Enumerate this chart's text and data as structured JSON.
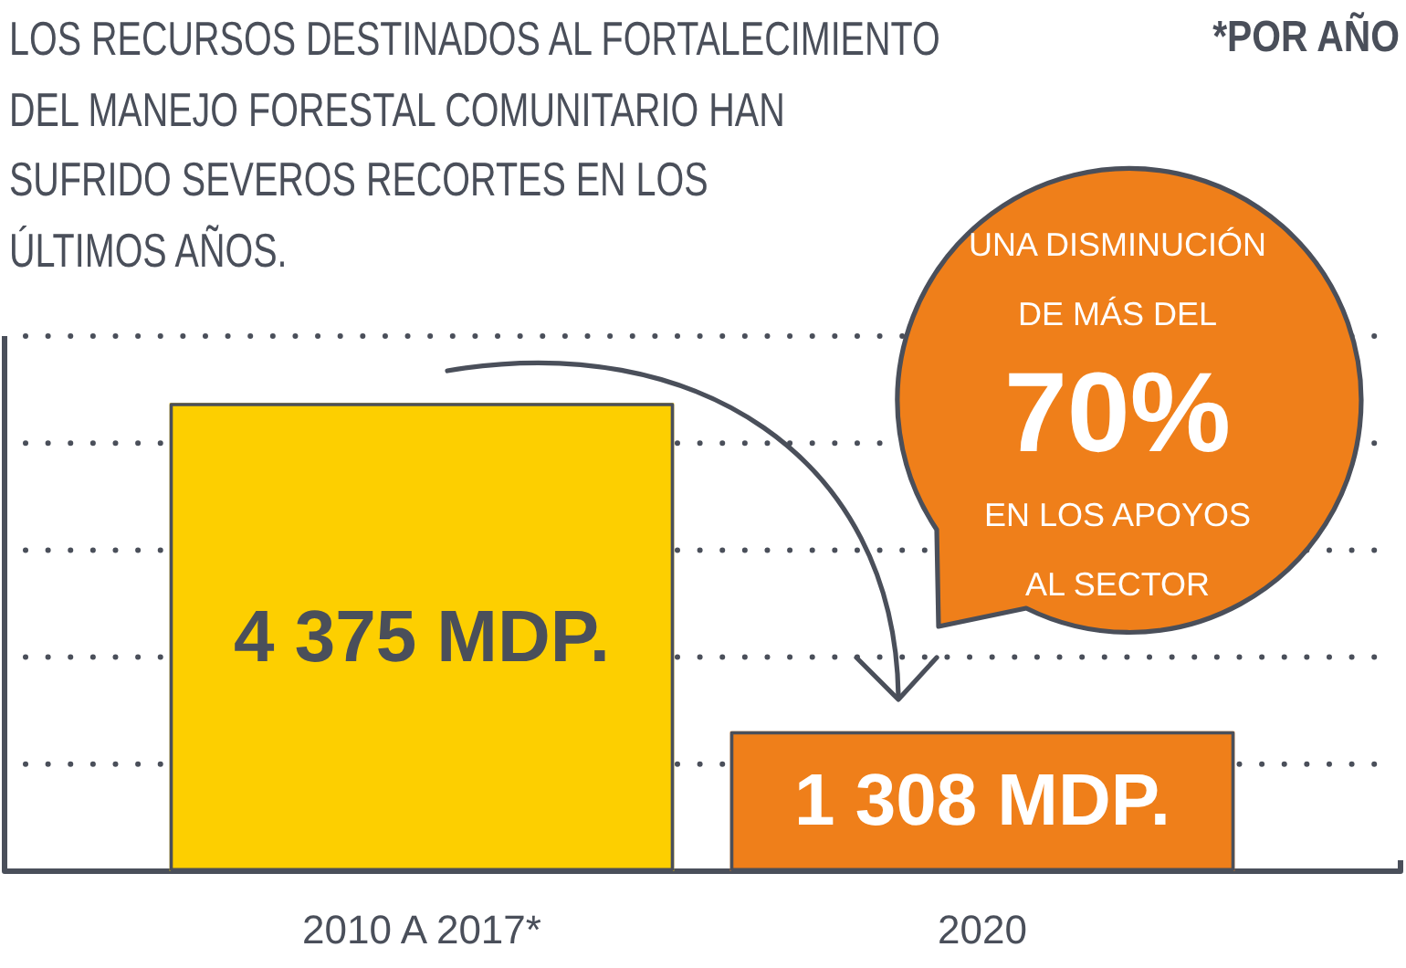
{
  "chart_data": {
    "type": "bar",
    "title": "LOS RECURSOS DESTINADOS AL FORTALECIMIENTO DEL MANEJO FORESTAL COMUNITARIO HAN SUFRIDO SEVEROS RECORTES EN LOS ÚLTIMOS AÑOS.",
    "annotations": [
      "*POR AÑO",
      "UNA DISMINUCIÓN DE MÁS DEL",
      "70%",
      "EN LOS APOYOS AL SECTOR"
    ],
    "categories": [
      "2010 A 2017*",
      "2020"
    ],
    "values": [
      4375,
      1308
    ],
    "colors": [
      "#fdcf00",
      "#ef7f1a"
    ],
    "value_labels": [
      "4 375 MDP.",
      "1 308 MDP."
    ],
    "ylim": [
      0,
      5000
    ],
    "yticks": [
      {
        "value": 1000,
        "label": null
      },
      {
        "value": 2000,
        "label": null
      },
      {
        "value": 3000,
        "label": null
      },
      {
        "value": 4000,
        "label": null
      },
      {
        "value": 5000,
        "label": null
      }
    ],
    "grid": "y",
    "tick_labels": "x"
  }
}
